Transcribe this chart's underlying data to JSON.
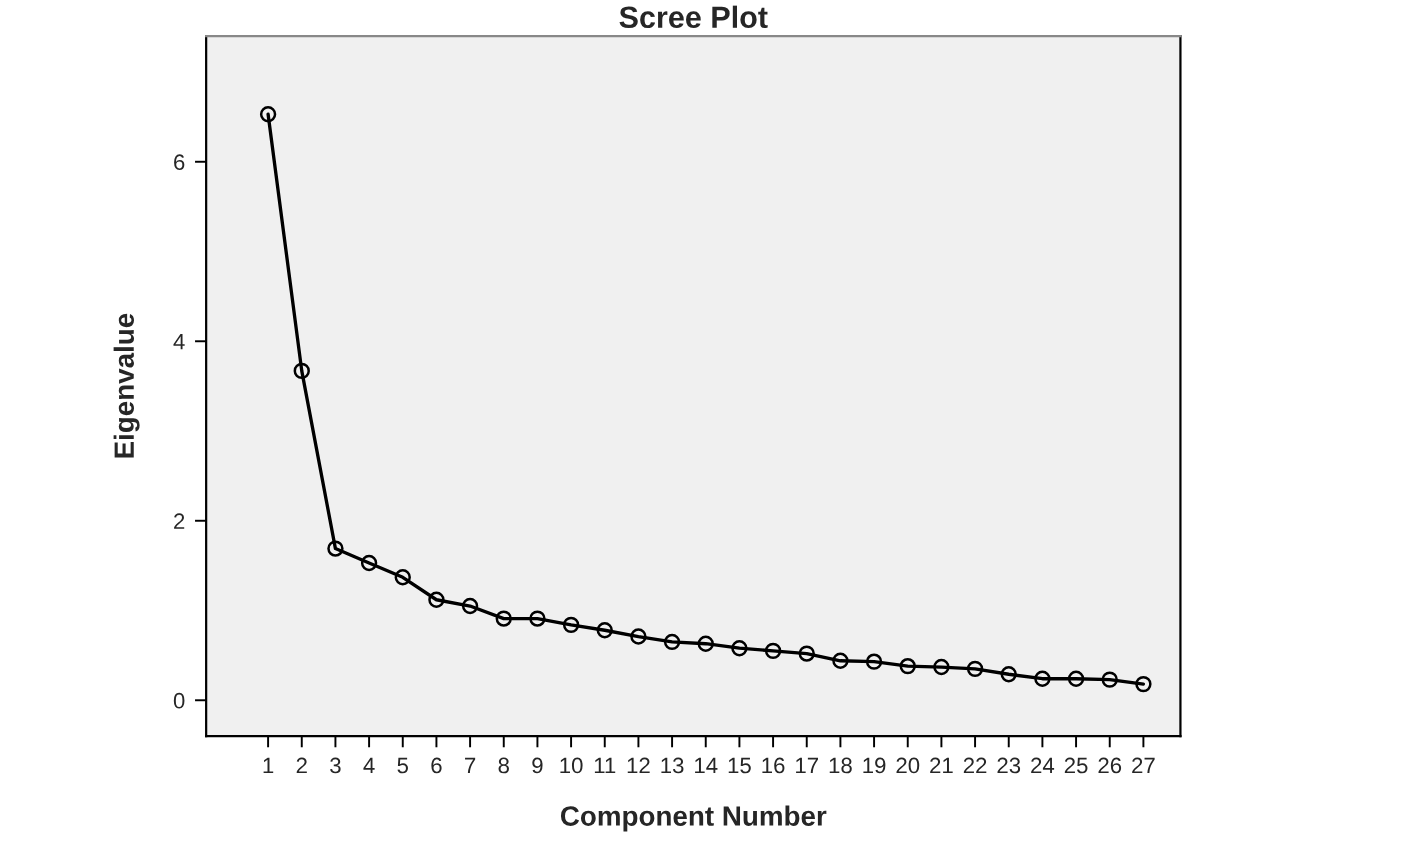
{
  "chart_data": {
    "type": "line",
    "title": "Scree Plot",
    "xlabel": "Component Number",
    "ylabel": "Eigenvalue",
    "categories": [
      "1",
      "2",
      "3",
      "4",
      "5",
      "6",
      "7",
      "8",
      "9",
      "10",
      "11",
      "12",
      "13",
      "14",
      "15",
      "16",
      "17",
      "18",
      "19",
      "20",
      "21",
      "22",
      "23",
      "24",
      "25",
      "26",
      "27"
    ],
    "series": [
      {
        "color": "#000000",
        "values": [
          6.53,
          3.67,
          1.69,
          1.53,
          1.37,
          1.12,
          1.05,
          0.91,
          0.91,
          0.84,
          0.78,
          0.71,
          0.65,
          0.63,
          0.58,
          0.55,
          0.52,
          0.44,
          0.43,
          0.38,
          0.37,
          0.35,
          0.29,
          0.24,
          0.24,
          0.23,
          0.18
        ]
      }
    ],
    "ylim": [
      -0.4,
      7.4
    ],
    "yticks": [
      0,
      2,
      4,
      6
    ],
    "marker": "circle",
    "line_style": "solid",
    "grid": false,
    "legend": false
  }
}
